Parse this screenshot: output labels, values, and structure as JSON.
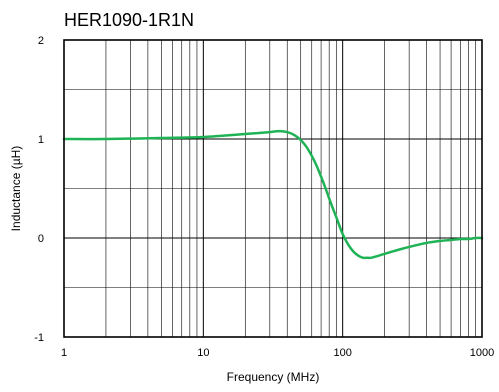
{
  "chart_data": {
    "type": "line",
    "title": "HER1090-1R1N",
    "xlabel": "Frequency (MHz)",
    "ylabel": "Inductance (µH)",
    "xscale": "log",
    "xlim": [
      1,
      1000
    ],
    "ylim": [
      -1,
      2
    ],
    "xticks": [
      1,
      10,
      100,
      1000
    ],
    "xtick_labels": [
      "1",
      "10",
      "100",
      "1000"
    ],
    "yticks": [
      2,
      1,
      0,
      -1
    ],
    "ytick_labels": [
      "2",
      "1",
      "0",
      "-1"
    ],
    "grid": true,
    "series": [
      {
        "color": "#1fb356",
        "x": [
          1,
          2,
          5,
          10,
          20,
          30,
          35,
          40,
          45,
          50,
          55,
          60,
          65,
          70,
          75,
          80,
          85,
          90,
          95,
          100,
          110,
          120,
          130,
          140,
          150,
          160,
          180,
          200,
          250,
          300,
          400,
          500,
          600,
          700,
          800,
          900,
          1000
        ],
        "y": [
          1.0,
          1.0,
          1.01,
          1.02,
          1.05,
          1.07,
          1.08,
          1.07,
          1.04,
          0.99,
          0.92,
          0.83,
          0.73,
          0.62,
          0.51,
          0.4,
          0.3,
          0.21,
          0.12,
          0.04,
          -0.07,
          -0.14,
          -0.18,
          -0.2,
          -0.2,
          -0.2,
          -0.18,
          -0.16,
          -0.12,
          -0.09,
          -0.05,
          -0.03,
          -0.02,
          -0.01,
          -0.01,
          0.0,
          0.0
        ]
      }
    ]
  }
}
